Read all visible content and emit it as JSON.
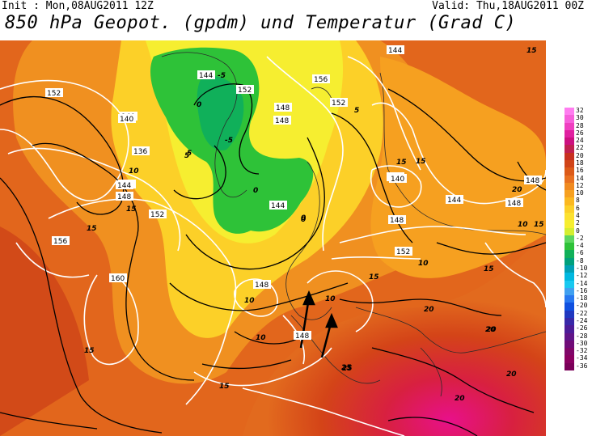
{
  "header": {
    "init": "Init : Mon,08AUG2011 12Z",
    "valid": "Valid: Thu,18AUG2011 00Z",
    "title": "850 hPa Geopot. (gpdm) und Temperatur (Grad C)"
  },
  "legend": {
    "labels": [
      "32",
      "30",
      "28",
      "26",
      "24",
      "22",
      "20",
      "18",
      "16",
      "14",
      "12",
      "10",
      "8",
      "6",
      "4",
      "2",
      "0",
      "-2",
      "-4",
      "-6",
      "-8",
      "-10",
      "-12",
      "-14",
      "-16",
      "-18",
      "-20",
      "-22",
      "-24",
      "-26",
      "-28",
      "-30",
      "-32",
      "-34",
      "-36"
    ],
    "colors": [
      "#ff7df0",
      "#f75fdb",
      "#ef3fc0",
      "#e020a0",
      "#cc1080",
      "#c02050",
      "#c83020",
      "#d04418",
      "#dc5a18",
      "#e87020",
      "#f08a20",
      "#f6a020",
      "#fbb820",
      "#fcd028",
      "#fce130",
      "#f6ee30",
      "#d4ee30",
      "#5cd660",
      "#2ec238",
      "#10b05a",
      "#00a07c",
      "#00a0b4",
      "#00b8e0",
      "#18c8f0",
      "#40a0f0",
      "#2878f0",
      "#1050e0",
      "#2038c0",
      "#3828a8",
      "#4c1c98",
      "#601488",
      "#700c78",
      "#800668",
      "#8a0060",
      "#7a0058"
    ]
  },
  "map": {
    "geopotential_labels": [
      "152",
      "140",
      "136",
      "144",
      "148",
      "152",
      "156",
      "160",
      "144",
      "152",
      "148",
      "140",
      "152",
      "156",
      "144",
      "148",
      "144",
      "140",
      "144",
      "148",
      "148",
      "144",
      "152",
      "148",
      "144",
      "148",
      "148",
      "140"
    ],
    "temperature_labels": [
      "15",
      "10",
      "5",
      "-5",
      "0",
      "0",
      "0",
      "-5",
      "5",
      "10",
      "15",
      "15",
      "10",
      "15",
      "20",
      "25",
      "20",
      "15",
      "20",
      "20",
      "15",
      "25",
      "20",
      "10",
      "15",
      "20",
      "15",
      "10",
      "15",
      "5",
      "0",
      "15",
      "10"
    ]
  }
}
